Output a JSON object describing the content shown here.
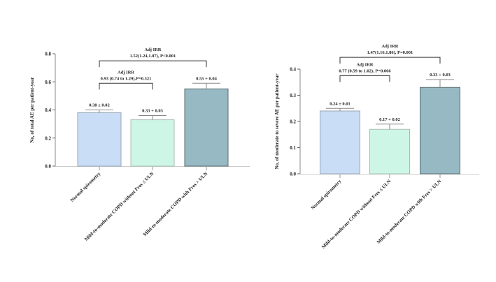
{
  "chart_data": [
    {
      "type": "bar",
      "ylabel": "No, of total AE per patient-year",
      "ylim": [
        0,
        0.8
      ],
      "yticks": [
        "0.0",
        "0.2",
        "0.4",
        "0.6",
        "0.8"
      ],
      "ytick_values": [
        0,
        0.2,
        0.4,
        0.6,
        0.8
      ],
      "categories": [
        "Normal spirometry",
        "Mild-to-moderate COPD without Fres ≤ ULN",
        "Mild-to-moderate COPD with Fres > ULN"
      ],
      "values": [
        0.38,
        0.33,
        0.55
      ],
      "errors": [
        0.02,
        0.03,
        0.04
      ],
      "value_labels": [
        "0.38 ± 0.02",
        "0.33 + 0.03",
        "0.55 + 0.04"
      ],
      "colors": [
        "#C9DDF6",
        "#CDF6E6",
        "#96B9C4"
      ],
      "borders": [
        "#9aa6b4",
        "#a9bdb4",
        "#5a6b71"
      ],
      "annotations": [
        {
          "title": "Adj IRR",
          "text": "0.93 (0.74 to 1.29),P=0.521",
          "from": 0,
          "to": 1,
          "level": 0.59
        },
        {
          "title": "Adj IRR",
          "text": "1.52(1.24,1.87), P<0.001",
          "from": 0,
          "to": 2,
          "level": 0.75
        }
      ]
    },
    {
      "type": "bar",
      "ylabel": "No, of moderate to severe AE per patient-year",
      "ylim": [
        0,
        0.4
      ],
      "yticks": [
        "0.0",
        "0.1",
        "0.2",
        "0.3",
        "0.4"
      ],
      "ytick_values": [
        0,
        0.1,
        0.2,
        0.3,
        0.4
      ],
      "categories": [
        "Normal spirometry",
        "Mild-to-moderate COPD without Fres ≤ ULN",
        "Mild-to-moderate COPD with Fres > ULN"
      ],
      "values": [
        0.24,
        0.17,
        0.33
      ],
      "errors": [
        0.01,
        0.02,
        0.03
      ],
      "value_labels": [
        "0.24 ± 0.01",
        "0.17 + 0.02",
        "0.33 + 0.03"
      ],
      "colors": [
        "#C9DDF6",
        "#CDF6E6",
        "#96B9C4"
      ],
      "borders": [
        "#9aa6b4",
        "#a9bdb4",
        "#5a6b71"
      ],
      "annotations": [
        {
          "title": "Adj IRR",
          "text": "0.77 (0.59 to 1.02), P=0.066",
          "from": 0,
          "to": 1,
          "level": 0.375
        },
        {
          "title": "Adj IRR",
          "text": "1.47(1.16,1.86), P=0.001",
          "from": 0,
          "to": 2,
          "level": 0.445
        }
      ]
    }
  ]
}
